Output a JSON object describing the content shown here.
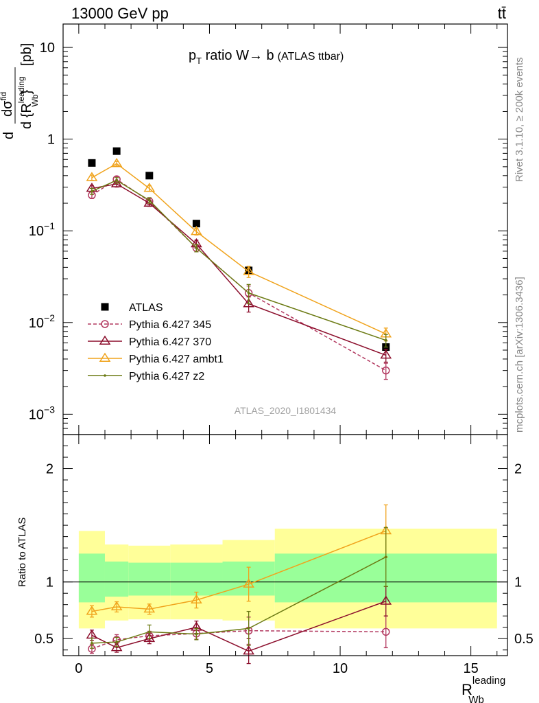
{
  "header": {
    "left": "13000 GeV pp",
    "right": "tt̄"
  },
  "side_labels": {
    "rivet": "Rivet 3.1.10, ≥ 200k events",
    "mcplots": "mcplots.cern.ch [arXiv:1306.3436]"
  },
  "chart_data": [
    {
      "type": "scatter",
      "panel": "main",
      "title": "p_T ratio W → b (ATLAS ttbar)",
      "title_parts": {
        "p": "p",
        "sub": "T",
        "rest": " ratio W→ b",
        "small": "(ATLAS ttbar)"
      },
      "ylabel": "d dσ^{fid} / d {R_Wb^leading} [pb]",
      "ylabel_parts": {
        "d1": "d",
        "num": "dσ",
        "num_sup": "fid",
        "den": "d {R",
        "den_sup": "leading",
        "den_sub": "Wb",
        "den_close": "}",
        "unit": "[pb]"
      },
      "yscale": "log",
      "xlim": [
        -0.6,
        16.4
      ],
      "ylim": [
        0.0006,
        18
      ],
      "yticks": [
        0.001,
        0.01,
        0.1,
        1,
        10
      ],
      "ytick_labels": [
        {
          "base": "10",
          "exp": "−3"
        },
        {
          "base": "10",
          "exp": "−2"
        },
        {
          "base": "10",
          "exp": "−1"
        },
        {
          "base": "1",
          "exp": ""
        },
        {
          "base": "10",
          "exp": ""
        }
      ],
      "watermark": "ATLAS_2020_I1801434",
      "legend_position": "lower-left",
      "series": [
        {
          "name": "ATLAS",
          "color": "#000000",
          "marker": "filled-square",
          "line": "none",
          "x": [
            0.5,
            1.45,
            2.7,
            4.5,
            6.5,
            11.75
          ],
          "y": [
            0.55,
            0.74,
            0.4,
            0.12,
            0.037,
            0.0054
          ]
        },
        {
          "name": "Pythia 6.427 345",
          "color": "#b2385f",
          "marker": "open-circle",
          "line": "dashed",
          "x": [
            0.5,
            1.45,
            2.7,
            4.5,
            6.5,
            11.75
          ],
          "y": [
            0.245,
            0.365,
            0.21,
            0.065,
            0.021,
            0.003
          ],
          "err": [
            0.02,
            0.025,
            0.015,
            0.006,
            0.004,
            0.0006
          ]
        },
        {
          "name": "Pythia 6.427 370",
          "color": "#8b0d2b",
          "marker": "open-triangle",
          "line": "solid",
          "x": [
            0.5,
            1.45,
            2.7,
            4.5,
            6.5,
            11.75
          ],
          "y": [
            0.29,
            0.325,
            0.2,
            0.072,
            0.016,
            0.0044
          ],
          "err": [
            0.02,
            0.025,
            0.015,
            0.007,
            0.003,
            0.0007
          ]
        },
        {
          "name": "Pythia 6.427 ambt1",
          "color": "#f0a31c",
          "marker": "open-triangle",
          "line": "solid",
          "x": [
            0.5,
            1.45,
            2.7,
            4.5,
            6.5,
            11.75
          ],
          "y": [
            0.38,
            0.54,
            0.29,
            0.098,
            0.036,
            0.0075
          ],
          "err": [
            0.025,
            0.03,
            0.02,
            0.008,
            0.005,
            0.0012
          ]
        },
        {
          "name": "Pythia 6.427 z2",
          "color": "#6b7a13",
          "marker": "dot",
          "line": "solid",
          "x": [
            0.5,
            1.45,
            2.7,
            4.5,
            6.5,
            11.75
          ],
          "y": [
            0.27,
            0.355,
            0.215,
            0.065,
            0.021,
            0.0064
          ],
          "err": [
            0.02,
            0.025,
            0.015,
            0.006,
            0.005,
            0.001
          ]
        }
      ]
    },
    {
      "type": "scatter",
      "panel": "ratio",
      "ylabel": "Ratio to ATLAS",
      "xlabel": "R_Wb^leading",
      "xlabel_parts": {
        "base": "R",
        "sup": "leading",
        "sub": "Wb"
      },
      "xlim": [
        -0.6,
        16.4
      ],
      "ylim": [
        0.35,
        2.3
      ],
      "xticks": [
        0,
        5,
        10,
        15
      ],
      "xtick_labels": [
        "0",
        "5",
        "10",
        "15"
      ],
      "yticks": [
        0.5,
        1,
        2
      ],
      "ytick_labels": [
        "0.5",
        "1",
        "2"
      ],
      "reference_line": 1,
      "bands": [
        {
          "x0": 0.0,
          "x1": 1.0,
          "inner": [
            0.82,
            1.25
          ],
          "outer": [
            0.59,
            1.45
          ]
        },
        {
          "x0": 1.0,
          "x1": 1.9,
          "inner": [
            0.87,
            1.18
          ],
          "outer": [
            0.66,
            1.33
          ]
        },
        {
          "x0": 1.9,
          "x1": 3.5,
          "inner": [
            0.88,
            1.17
          ],
          "outer": [
            0.67,
            1.32
          ]
        },
        {
          "x0": 3.5,
          "x1": 5.5,
          "inner": [
            0.88,
            1.17
          ],
          "outer": [
            0.67,
            1.33
          ]
        },
        {
          "x0": 5.5,
          "x1": 7.5,
          "inner": [
            0.88,
            1.18
          ],
          "outer": [
            0.66,
            1.37
          ]
        },
        {
          "x0": 7.5,
          "x1": 16.0,
          "inner": [
            0.82,
            1.25
          ],
          "outer": [
            0.59,
            1.47
          ]
        }
      ],
      "series": [
        {
          "name": "Pythia 6.427 345",
          "color": "#b2385f",
          "marker": "open-circle",
          "line": "dashed",
          "x": [
            0.5,
            1.45,
            2.7,
            4.5,
            6.5,
            11.75
          ],
          "y": [
            0.41,
            0.49,
            0.525,
            0.545,
            0.57,
            0.56
          ],
          "err": [
            0.04,
            0.045,
            0.04,
            0.05,
            0.12,
            0.14
          ]
        },
        {
          "name": "Pythia 6.427 370",
          "color": "#8b0d2b",
          "marker": "open-triangle",
          "line": "solid",
          "x": [
            0.5,
            1.45,
            2.7,
            4.5,
            6.5,
            11.75
          ],
          "y": [
            0.53,
            0.42,
            0.5,
            0.6,
            0.39,
            0.83
          ],
          "err": [
            0.045,
            0.04,
            0.045,
            0.055,
            0.11,
            0.13
          ]
        },
        {
          "name": "Pythia 6.427 ambt1",
          "color": "#f0a31c",
          "marker": "open-triangle",
          "line": "solid",
          "x": [
            0.5,
            1.45,
            2.7,
            4.5,
            6.5,
            11.75
          ],
          "y": [
            0.74,
            0.78,
            0.76,
            0.84,
            0.98,
            1.45
          ],
          "err": [
            0.05,
            0.045,
            0.045,
            0.07,
            0.15,
            0.23
          ]
        },
        {
          "name": "Pythia 6.427 z2",
          "color": "#6b7a13",
          "marker": "dot",
          "line": "solid",
          "x": [
            0.5,
            1.45,
            2.7,
            4.5,
            6.5,
            11.75
          ],
          "y": [
            0.46,
            0.47,
            0.56,
            0.54,
            0.59,
            1.22
          ],
          "err": [
            0.045,
            0.04,
            0.06,
            0.05,
            0.15,
            0.26
          ]
        }
      ]
    }
  ]
}
